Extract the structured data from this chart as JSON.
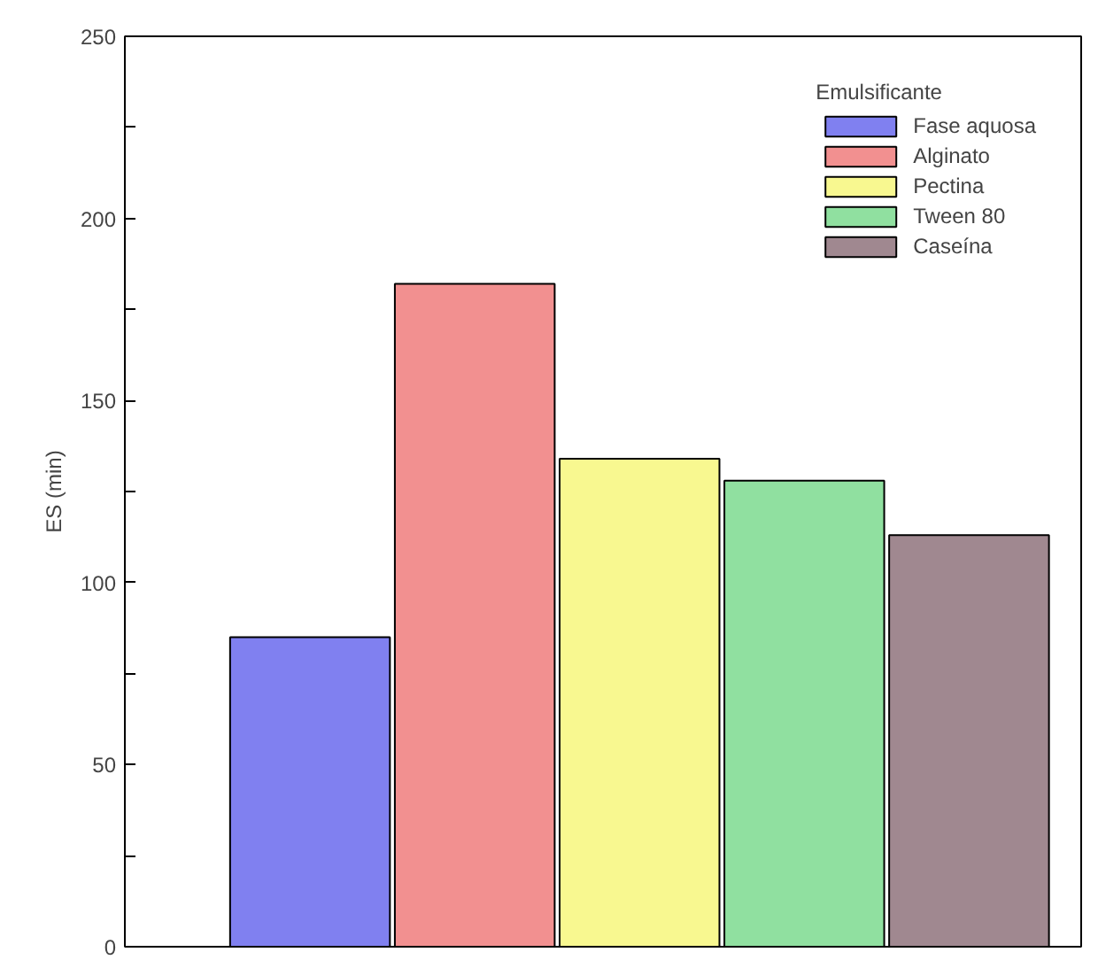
{
  "chart_data": {
    "type": "bar",
    "ylabel": "ES (min)",
    "legend_title": "Emulsificante",
    "legend": "top right",
    "categories": [
      null
    ],
    "series": [
      {
        "name": "Fase aquosa",
        "color": "#8080f0",
        "values": [
          85
        ]
      },
      {
        "name": "Alginato",
        "color": "#f29090",
        "values": [
          182
        ]
      },
      {
        "name": "Pectina",
        "color": "#f8f890",
        "values": [
          134
        ]
      },
      {
        "name": "Tween 80",
        "color": "#90e0a0",
        "values": [
          128
        ]
      },
      {
        "name": "Caseína",
        "color": "#a08890",
        "values": [
          113
        ]
      }
    ],
    "ylim": [
      0,
      250
    ],
    "yticks": [
      0,
      {
        "value": 25,
        "label": null
      },
      50,
      {
        "value": 75,
        "label": null
      },
      100,
      {
        "value": 125,
        "label": null
      },
      150,
      {
        "value": 175,
        "label": null
      },
      200,
      {
        "value": 225,
        "label": null
      },
      250
    ],
    "grid": false
  }
}
